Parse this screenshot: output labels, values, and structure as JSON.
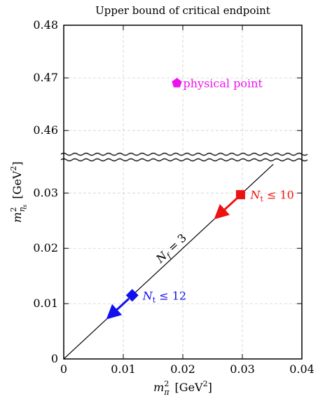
{
  "chart_data": {
    "type": "scatter",
    "title": "Upper bound of critical endpoint",
    "xlabel": {
      "main": "m",
      "sup": "2",
      "sub": "π",
      "unit_pre": "[GeV",
      "unit_sup": "2",
      "unit_post": "]"
    },
    "ylabel": {
      "main": "m",
      "sup": "2",
      "sub": "η",
      "subsub": "s",
      "unit_pre": "[GeV",
      "unit_sup": "2",
      "unit_post": "]"
    },
    "xlim": [
      0,
      0.04
    ],
    "x_ticks": [
      0,
      0.01,
      0.02,
      0.03,
      0.04
    ],
    "x_tick_labels": [
      "0",
      "0.01",
      "0.02",
      "0.03",
      "0.04"
    ],
    "y_broken_axis": true,
    "ylim_lower": [
      0,
      0.036
    ],
    "ylim_upper": [
      0.4555,
      0.48
    ],
    "y_ticks_lower": [
      0,
      0.01,
      0.02,
      0.03
    ],
    "y_tick_labels_lower": [
      "0",
      "0.01",
      "0.02",
      "0.03"
    ],
    "y_ticks_upper": [
      0.46,
      0.47,
      0.48
    ],
    "y_tick_labels_upper": [
      "0.46",
      "0.47",
      "0.48"
    ],
    "grid": true,
    "line": {
      "label_main": "N",
      "label_sub": "f",
      "label_rest": " = 3",
      "x": [
        0,
        0.0352
      ],
      "y": [
        0,
        0.0352
      ],
      "color": "#000000"
    },
    "points": [
      {
        "x": 0.0297,
        "y": 0.0297,
        "marker": "square",
        "color": "#ee1111",
        "label_main": "N",
        "label_sub": "t",
        "label_rest": " ≤ 10",
        "arrow_to": [
          0.0256,
          0.0256
        ]
      },
      {
        "x": 0.0115,
        "y": 0.0115,
        "marker": "diamond",
        "color": "#1111ee",
        "label_main": "N",
        "label_sub": "t",
        "label_rest": " ≤ 12",
        "arrow_to": [
          0.0075,
          0.0075
        ]
      },
      {
        "x": 0.019,
        "y": 0.469,
        "marker": "pentagon",
        "color": "#ee11ee",
        "label": "physical point"
      }
    ]
  }
}
